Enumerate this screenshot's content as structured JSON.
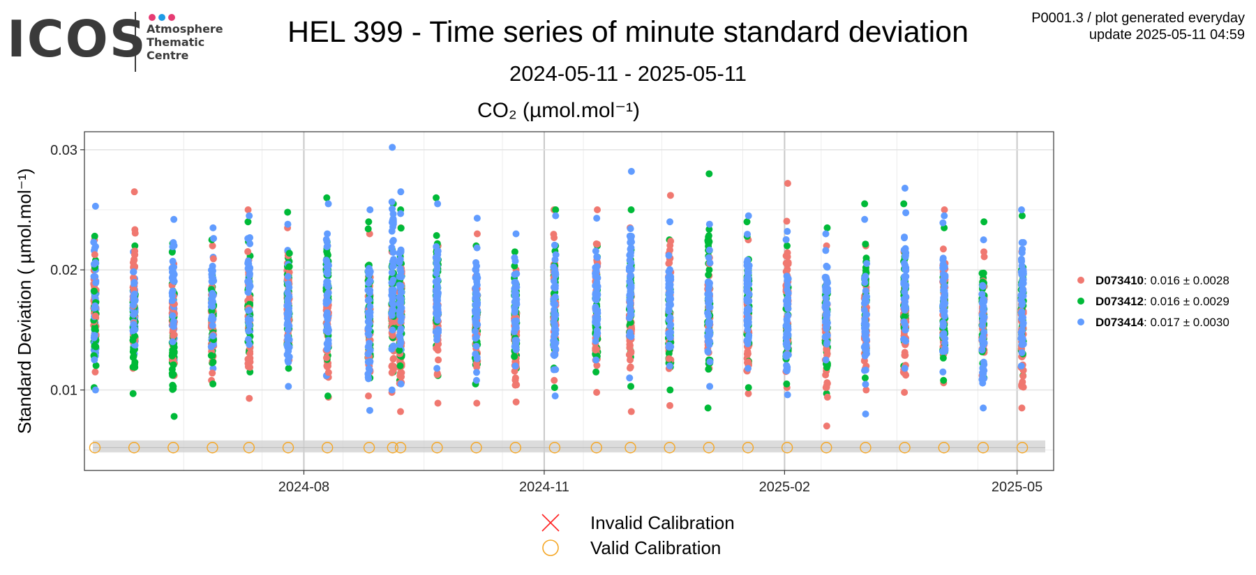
{
  "logo": {
    "wordmark": "ICOS",
    "lines": [
      "Atmosphere",
      "Thematic",
      "Centre"
    ],
    "dot_colors": [
      "#e63c73",
      "#1e9be6",
      "#e63c73"
    ]
  },
  "header": {
    "title": "HEL 399 - Time series of minute standard deviation",
    "date_range": "2024-05-11 - 2025-05-11",
    "meta_line1": "P0001.3 / plot generated everyday",
    "meta_line2": "update  2025-05-11 04:59"
  },
  "chart_data": {
    "type": "scatter",
    "title": "CO₂ (µmol.mol⁻¹)",
    "ylabel": "Standard Deviation ( µmol.mol⁻¹)",
    "xlabel": "",
    "x_range": [
      "2024-05-09",
      "2025-05-15"
    ],
    "ylim": [
      0.0033,
      0.0315
    ],
    "x_ticks": [
      {
        "date": "2024-08-01",
        "label": "2024-08"
      },
      {
        "date": "2024-11-01",
        "label": "2024-11"
      },
      {
        "date": "2025-02-01",
        "label": "2025-02"
      },
      {
        "date": "2025-05-01",
        "label": "2025-05"
      }
    ],
    "y_ticks": [
      0.01,
      0.02,
      0.03
    ],
    "y_tick_labels": [
      "0.01",
      "0.02",
      "0.03"
    ],
    "grid": true,
    "legend_position": "right",
    "calibration_band": [
      0.0048,
      0.0058
    ],
    "valid_calibrations": {
      "y": 0.0052,
      "dates": [
        "2024-05-13",
        "2024-05-28",
        "2024-06-12",
        "2024-06-27",
        "2024-07-11",
        "2024-07-26",
        "2024-08-10",
        "2024-08-26",
        "2024-09-04",
        "2024-09-07",
        "2024-09-21",
        "2024-10-06",
        "2024-10-21",
        "2024-11-05",
        "2024-11-21",
        "2024-12-04",
        "2024-12-19",
        "2025-01-03",
        "2025-01-18",
        "2025-02-02",
        "2025-02-17",
        "2025-03-04",
        "2025-03-19",
        "2025-04-03",
        "2025-04-18",
        "2025-05-03"
      ]
    },
    "series": [
      {
        "name": "D073410",
        "color": "#f07870",
        "stats": ": 0.016 ± 0.0028",
        "dates": [
          "2024-05-13",
          "2024-05-28",
          "2024-06-12",
          "2024-06-27",
          "2024-07-11",
          "2024-07-26",
          "2024-08-10",
          "2024-08-26",
          "2024-09-04",
          "2024-09-07",
          "2024-09-21",
          "2024-10-06",
          "2024-10-21",
          "2024-11-05",
          "2024-11-21",
          "2024-12-04",
          "2024-12-19",
          "2025-01-03",
          "2025-01-18",
          "2025-02-02",
          "2025-02-17",
          "2025-03-04",
          "2025-03-19",
          "2025-04-03",
          "2025-04-18",
          "2025-05-03"
        ],
        "min": [
          0.0115,
          0.0118,
          0.0112,
          0.0108,
          0.0093,
          0.0125,
          0.0094,
          0.0095,
          0.0098,
          0.0082,
          0.0089,
          0.0089,
          0.009,
          0.0108,
          0.0098,
          0.0082,
          0.0087,
          0.0118,
          0.0097,
          0.0102,
          0.007,
          0.01,
          0.0098,
          0.0106,
          0.0112,
          0.0085
        ],
        "max": [
          0.0225,
          0.0265,
          0.0205,
          0.022,
          0.025,
          0.0235,
          0.022,
          0.023,
          0.0215,
          0.0235,
          0.022,
          0.023,
          0.02,
          0.025,
          0.025,
          0.0235,
          0.0262,
          0.0225,
          0.0225,
          0.0272,
          0.022,
          0.022,
          0.0215,
          0.025,
          0.0215,
          0.0215
        ],
        "count": 42
      },
      {
        "name": "D073412",
        "color": "#00ba38",
        "stats": ": 0.016 ± 0.0029",
        "dates": [
          "2024-05-13",
          "2024-05-28",
          "2024-06-12",
          "2024-06-27",
          "2024-07-11",
          "2024-07-26",
          "2024-08-10",
          "2024-08-26",
          "2024-09-04",
          "2024-09-07",
          "2024-09-21",
          "2024-10-06",
          "2024-10-21",
          "2024-11-05",
          "2024-11-21",
          "2024-12-04",
          "2024-12-19",
          "2025-01-03",
          "2025-01-18",
          "2025-02-02",
          "2025-02-17",
          "2025-03-04",
          "2025-03-19",
          "2025-04-03",
          "2025-04-18",
          "2025-05-03"
        ],
        "min": [
          0.0102,
          0.0097,
          0.0078,
          0.0105,
          0.0115,
          0.0118,
          0.0095,
          0.011,
          0.0115,
          0.0108,
          0.0112,
          0.0105,
          0.0118,
          0.0102,
          0.0115,
          0.0103,
          0.01,
          0.0085,
          0.0102,
          0.0105,
          0.0097,
          0.011,
          0.012,
          0.0108,
          0.011,
          0.0112
        ],
        "max": [
          0.0228,
          0.022,
          0.0222,
          0.0225,
          0.024,
          0.0248,
          0.026,
          0.024,
          0.0255,
          0.025,
          0.026,
          0.022,
          0.0215,
          0.025,
          0.022,
          0.025,
          0.0225,
          0.028,
          0.024,
          0.022,
          0.0235,
          0.0255,
          0.0255,
          0.0235,
          0.024,
          0.0245
        ],
        "count": 42
      },
      {
        "name": "D073414",
        "color": "#619cff",
        "stats": ": 0.017 ± 0.0030",
        "dates": [
          "2024-05-13",
          "2024-05-28",
          "2024-06-12",
          "2024-06-27",
          "2024-07-11",
          "2024-07-26",
          "2024-08-10",
          "2024-08-26",
          "2024-09-04",
          "2024-09-07",
          "2024-09-21",
          "2024-10-06",
          "2024-10-21",
          "2024-11-05",
          "2024-11-21",
          "2024-12-04",
          "2024-12-19",
          "2025-01-03",
          "2025-01-18",
          "2025-02-02",
          "2025-02-17",
          "2025-03-04",
          "2025-03-19",
          "2025-04-03",
          "2025-04-18",
          "2025-05-03"
        ],
        "min": [
          0.01,
          0.013,
          0.0125,
          0.0118,
          0.0125,
          0.0103,
          0.0112,
          0.0083,
          0.01,
          0.0105,
          0.0118,
          0.0108,
          0.012,
          0.0095,
          0.0125,
          0.011,
          0.012,
          0.0103,
          0.0118,
          0.0096,
          0.0125,
          0.008,
          0.0118,
          0.0115,
          0.0085,
          0.012
        ],
        "max": [
          0.0253,
          0.0215,
          0.0242,
          0.0235,
          0.0245,
          0.0238,
          0.0255,
          0.025,
          0.0302,
          0.0265,
          0.0255,
          0.0243,
          0.023,
          0.0245,
          0.0243,
          0.0282,
          0.024,
          0.0238,
          0.0245,
          0.0232,
          0.023,
          0.0242,
          0.0268,
          0.0245,
          0.0225,
          0.025
        ],
        "count": 46
      }
    ],
    "calibration_legend": [
      {
        "symbol": "cross",
        "color": "#ff2020",
        "label": "Invalid Calibration"
      },
      {
        "symbol": "circle",
        "color": "#f5a623",
        "label": "Valid Calibration"
      }
    ]
  }
}
